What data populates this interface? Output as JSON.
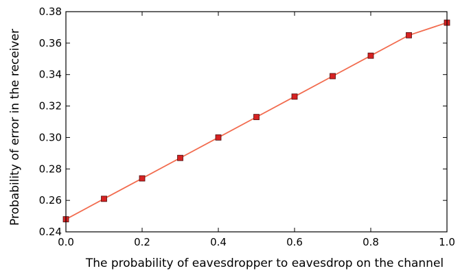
{
  "chart_data": {
    "type": "line",
    "title": "",
    "xlabel": "The probability of eavesdropper to eavesdrop on the channel",
    "ylabel": "Probability of error in the receiver",
    "xlim": [
      0.0,
      1.0
    ],
    "ylim": [
      0.24,
      0.38
    ],
    "x_ticks": [
      "0.0",
      "0.2",
      "0.4",
      "0.6",
      "0.8",
      "1.0"
    ],
    "y_ticks": [
      "0.24",
      "0.26",
      "0.28",
      "0.30",
      "0.32",
      "0.34",
      "0.36",
      "0.38"
    ],
    "grid": false,
    "legend": "none",
    "series": [
      {
        "x": [
          0.0,
          0.1,
          0.2,
          0.3,
          0.4,
          0.5,
          0.6,
          0.7,
          0.8,
          0.9,
          1.0
        ],
        "y": [
          0.248,
          0.261,
          0.274,
          0.287,
          0.3,
          0.313,
          0.326,
          0.339,
          0.352,
          0.365,
          0.373
        ],
        "line_color": "#f26b4e",
        "marker": "square",
        "marker_color": "#d62222"
      }
    ]
  }
}
